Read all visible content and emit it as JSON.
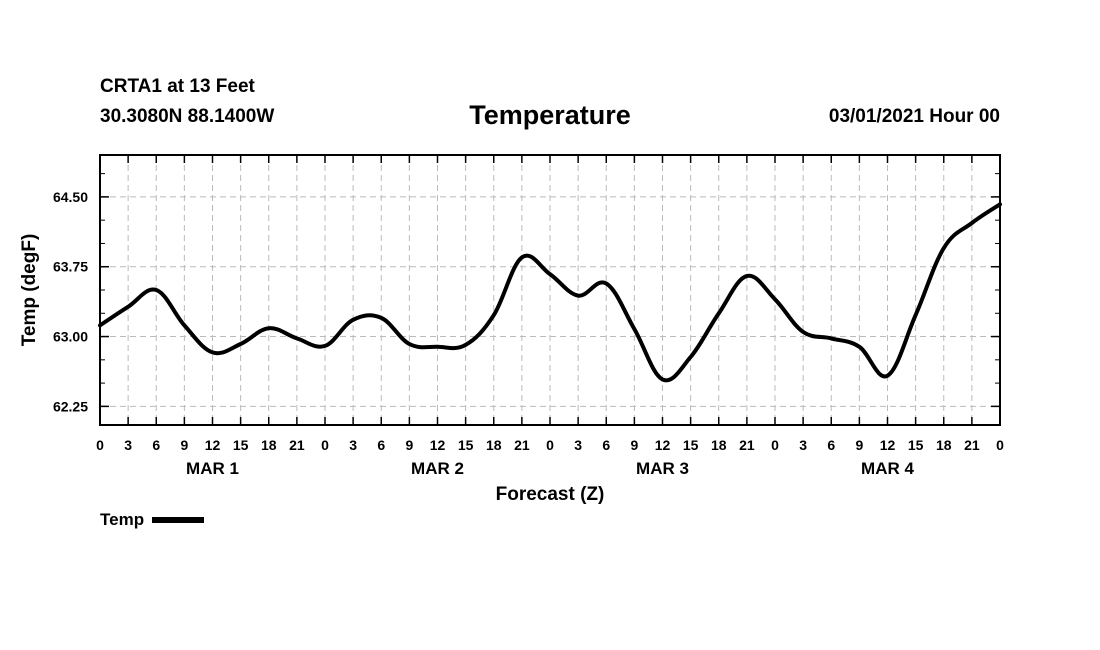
{
  "header": {
    "station": "CRTA1 at 13 Feet",
    "coords": "30.3080N 88.1400W",
    "title": "Temperature",
    "valid": "03/01/2021 Hour 00"
  },
  "legend": {
    "label": "Temp"
  },
  "colors": {
    "line": "#000000",
    "grid": "#bbbbbb",
    "axis": "#000000"
  },
  "chart_data": {
    "type": "line",
    "title": "Temperature",
    "xlabel": "Forecast (Z)",
    "ylabel": "Temp (degF)",
    "xlim": [
      0,
      96
    ],
    "ylim": [
      62.05,
      64.95
    ],
    "yticks": [
      62.25,
      63.0,
      63.75,
      64.5
    ],
    "ytick_labels": [
      "62.25",
      "63.00",
      "63.75",
      "64.50"
    ],
    "grid": true,
    "xtick_step_hours": 3,
    "xtick_labels": [
      "0",
      "3",
      "6",
      "9",
      "12",
      "15",
      "18",
      "21",
      "0",
      "3",
      "6",
      "9",
      "12",
      "15",
      "18",
      "21",
      "0",
      "3",
      "6",
      "9",
      "12",
      "15",
      "18",
      "21",
      "0",
      "3",
      "6",
      "9",
      "12",
      "15",
      "18",
      "21",
      "0"
    ],
    "day_labels": [
      {
        "label": "MAR 1",
        "hour": 12
      },
      {
        "label": "MAR 2",
        "hour": 36
      },
      {
        "label": "MAR 3",
        "hour": 60
      },
      {
        "label": "MAR 4",
        "hour": 84
      }
    ],
    "series": [
      {
        "name": "Temp",
        "x": [
          0,
          3,
          6,
          9,
          12,
          15,
          18,
          21,
          24,
          27,
          30,
          33,
          36,
          39,
          42,
          45,
          48,
          51,
          54,
          57,
          60,
          63,
          66,
          69,
          72,
          75,
          78,
          81,
          84,
          87,
          90,
          93,
          96
        ],
        "values": [
          63.12,
          63.32,
          63.5,
          63.12,
          62.83,
          62.92,
          63.09,
          62.98,
          62.9,
          63.18,
          63.2,
          62.92,
          62.89,
          62.91,
          63.23,
          63.85,
          63.67,
          63.44,
          63.57,
          63.08,
          62.54,
          62.78,
          63.25,
          63.65,
          63.4,
          63.05,
          62.98,
          62.89,
          62.58,
          63.23,
          63.95,
          64.22,
          64.42
        ]
      }
    ]
  }
}
